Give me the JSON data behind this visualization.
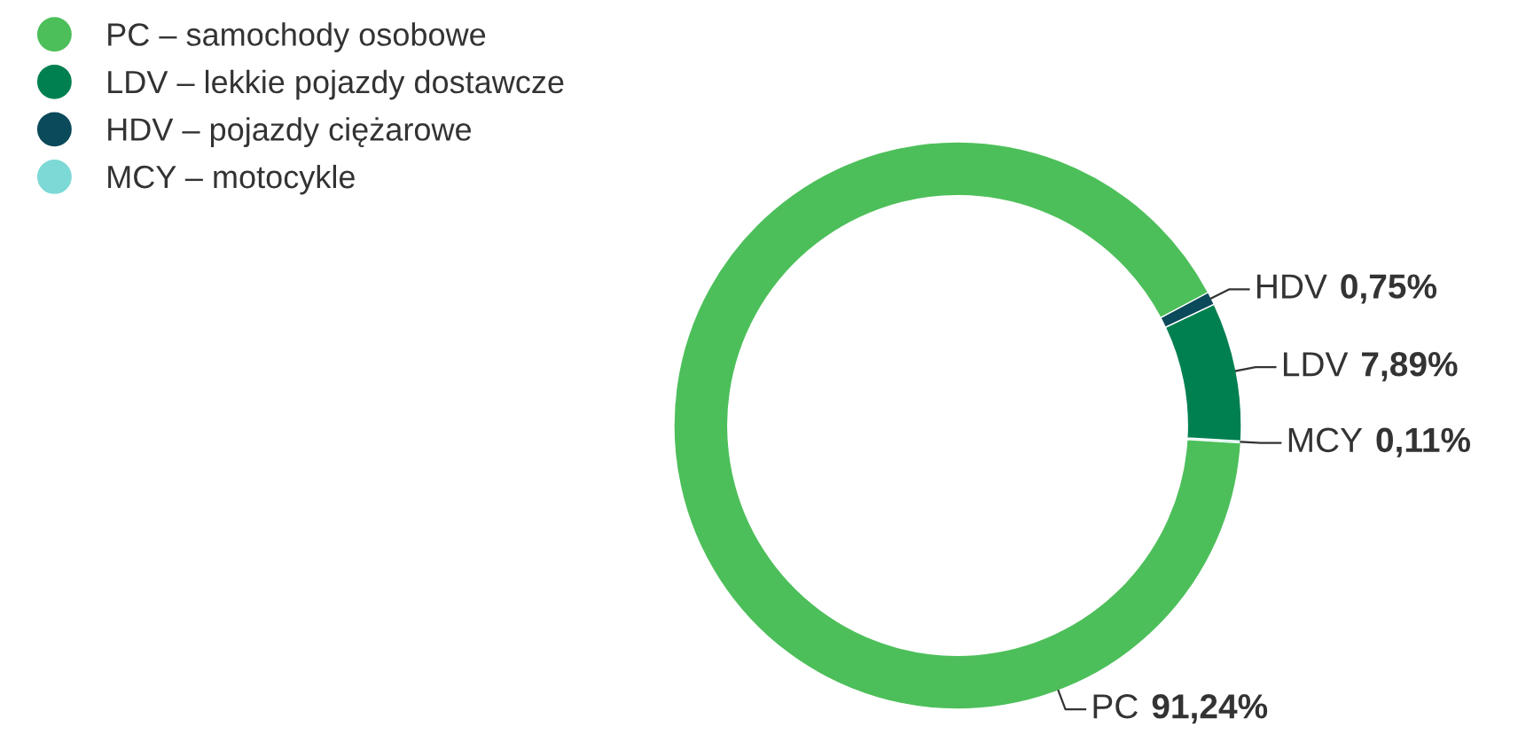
{
  "chart_data": {
    "type": "donut",
    "categories": [
      "PC – samochody osobowe",
      "LDV – lekkie pojazdy dostawcze",
      "HDV – pojazdy ciężarowe",
      "MCY – motocykle"
    ],
    "values": [
      91.24,
      7.89,
      0.75,
      0.11
    ],
    "colors": [
      "#4dbf5a",
      "#008050",
      "#0b4a5a",
      "#7dd9d6"
    ],
    "value_labels": [
      "PC 91,24%",
      "LDV 7,89%",
      "HDV 0,75%",
      "MCY 0,11%"
    ],
    "legend": "top left"
  }
}
